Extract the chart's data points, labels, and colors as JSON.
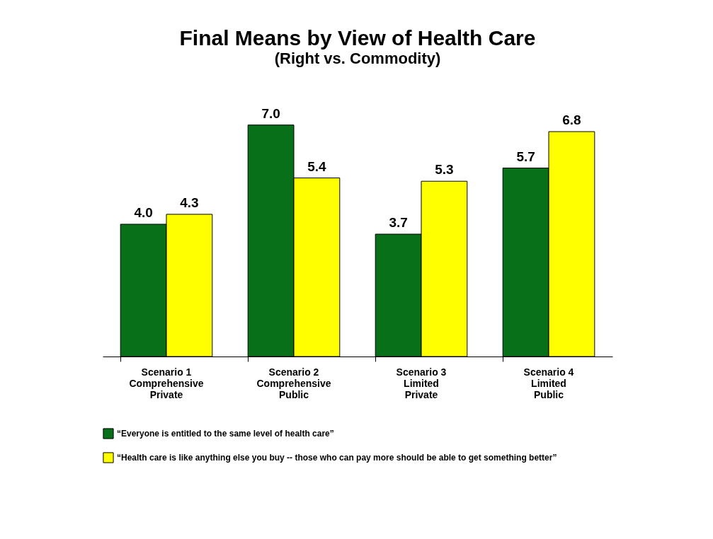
{
  "chart_data": {
    "type": "bar",
    "title": "Final Means by View of Health Care",
    "subtitle": "(Right vs. Commodity)",
    "categories": [
      "Scenario 1\nComprehensive\nPrivate",
      "Scenario 2\nComprehensive\nPublic",
      "Scenario 3\nLimited\nPrivate",
      "Scenario 4\nLimited\nPublic"
    ],
    "series": [
      {
        "name": "“Everyone is entitled to the same level of health care”",
        "color": "#087018",
        "values": [
          4.0,
          7.0,
          3.7,
          5.7
        ],
        "value_labels": [
          "4.0",
          "7.0",
          "3.7",
          "5.7"
        ]
      },
      {
        "name": "“Health care is like anything else you buy -- those who can pay more should be able to get something better”",
        "color": "#ffff00",
        "values": [
          4.3,
          5.4,
          5.3,
          6.8
        ],
        "value_labels": [
          "4.3",
          "5.4",
          "5.3",
          "6.8"
        ]
      }
    ],
    "legend": "bottom"
  }
}
